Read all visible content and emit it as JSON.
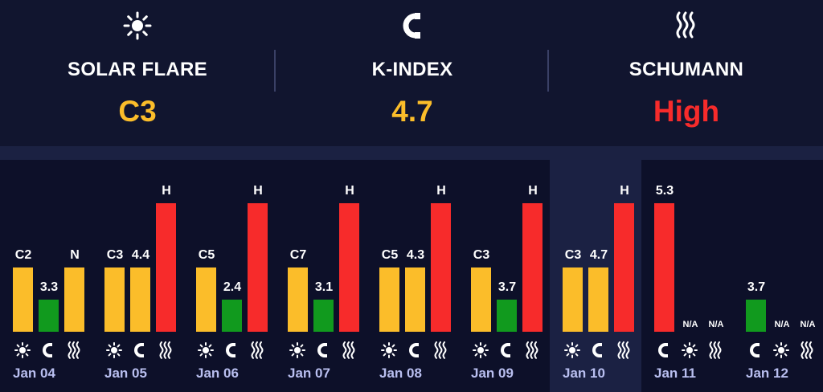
{
  "header": {
    "solar": {
      "label": "SOLAR FLARE",
      "value": "C3",
      "icon": "sun-icon",
      "color": "#fbbd2a"
    },
    "kindex": {
      "label": "K-INDEX",
      "value": "4.7",
      "icon": "magnet-icon",
      "color": "#fbbd2a"
    },
    "schumann": {
      "label": "SCHUMANN",
      "value": "High",
      "icon": "waves-icon",
      "color": "#f72b2b"
    }
  },
  "colors": {
    "yellow": "#fbbd2a",
    "green": "#119a1e",
    "red": "#f72b2b"
  },
  "days": [
    {
      "date": "Jan 04",
      "bars": [
        {
          "kind": "solar",
          "label": "C2",
          "level": 0.5,
          "color": "yellow"
        },
        {
          "kind": "kindex",
          "label": "3.3",
          "level": 0.25,
          "color": "green"
        },
        {
          "kind": "schumann",
          "label": "N",
          "level": 0.5,
          "color": "yellow"
        }
      ]
    },
    {
      "date": "Jan 05",
      "bars": [
        {
          "kind": "solar",
          "label": "C3",
          "level": 0.5,
          "color": "yellow"
        },
        {
          "kind": "kindex",
          "label": "4.4",
          "level": 0.5,
          "color": "yellow"
        },
        {
          "kind": "schumann",
          "label": "H",
          "level": 1.0,
          "color": "red"
        }
      ]
    },
    {
      "date": "Jan 06",
      "bars": [
        {
          "kind": "solar",
          "label": "C5",
          "level": 0.5,
          "color": "yellow"
        },
        {
          "kind": "kindex",
          "label": "2.4",
          "level": 0.25,
          "color": "green"
        },
        {
          "kind": "schumann",
          "label": "H",
          "level": 1.0,
          "color": "red"
        }
      ]
    },
    {
      "date": "Jan 07",
      "bars": [
        {
          "kind": "solar",
          "label": "C7",
          "level": 0.5,
          "color": "yellow"
        },
        {
          "kind": "kindex",
          "label": "3.1",
          "level": 0.25,
          "color": "green"
        },
        {
          "kind": "schumann",
          "label": "H",
          "level": 1.0,
          "color": "red"
        }
      ]
    },
    {
      "date": "Jan 08",
      "bars": [
        {
          "kind": "solar",
          "label": "C5",
          "level": 0.5,
          "color": "yellow"
        },
        {
          "kind": "kindex",
          "label": "4.3",
          "level": 0.5,
          "color": "yellow"
        },
        {
          "kind": "schumann",
          "label": "H",
          "level": 1.0,
          "color": "red"
        }
      ]
    },
    {
      "date": "Jan 09",
      "bars": [
        {
          "kind": "solar",
          "label": "C3",
          "level": 0.5,
          "color": "yellow"
        },
        {
          "kind": "kindex",
          "label": "3.7",
          "level": 0.25,
          "color": "green"
        },
        {
          "kind": "schumann",
          "label": "H",
          "level": 1.0,
          "color": "red"
        }
      ]
    },
    {
      "date": "Jan 10",
      "current": true,
      "bars": [
        {
          "kind": "solar",
          "label": "C3",
          "level": 0.5,
          "color": "yellow"
        },
        {
          "kind": "kindex",
          "label": "4.7",
          "level": 0.5,
          "color": "yellow"
        },
        {
          "kind": "schumann",
          "label": "H",
          "level": 1.0,
          "color": "red"
        }
      ]
    },
    {
      "date": "Jan 11",
      "bars": [
        {
          "kind": "kindex",
          "label": "5.3",
          "level": 1.0,
          "color": "red"
        },
        {
          "kind": "solar",
          "label": "N/A",
          "level": 0,
          "color": "yellow"
        },
        {
          "kind": "schumann",
          "label": "N/A",
          "level": 0,
          "color": "yellow"
        }
      ]
    },
    {
      "date": "Jan 12",
      "bars": [
        {
          "kind": "kindex",
          "label": "3.7",
          "level": 0.25,
          "color": "green"
        },
        {
          "kind": "solar",
          "label": "N/A",
          "level": 0,
          "color": "yellow"
        },
        {
          "kind": "schumann",
          "label": "N/A",
          "level": 0,
          "color": "yellow"
        }
      ]
    }
  ]
}
